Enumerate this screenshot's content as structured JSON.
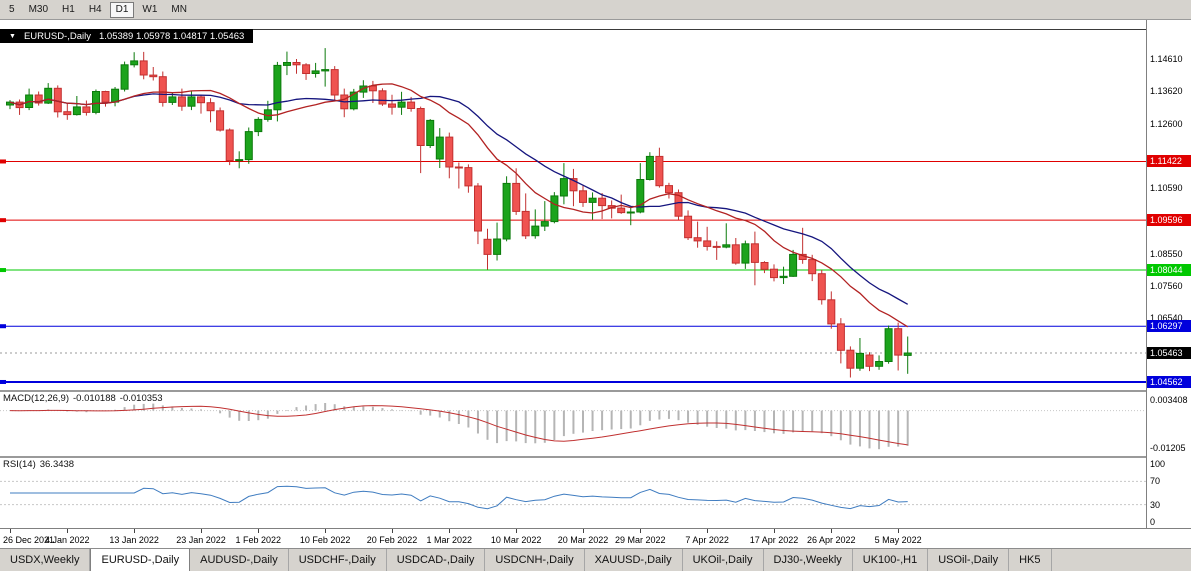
{
  "toolbar": {
    "buttons": [
      {
        "label": "5",
        "active": false
      },
      {
        "label": "M30",
        "active": false
      },
      {
        "label": "H1",
        "active": false
      },
      {
        "label": "H4",
        "active": false
      },
      {
        "label": "D1",
        "active": true
      },
      {
        "label": "W1",
        "active": false
      },
      {
        "label": "MN",
        "active": false
      }
    ]
  },
  "chart_data": {
    "type": "candlestick",
    "title": {
      "symbol": "EURUSD-,Daily",
      "ohlc_text": "1.05389 1.05978 1.04817 1.05463"
    },
    "ohlc_display": {
      "open": 1.05389,
      "high": 1.05978,
      "low": 1.04817,
      "close": 1.05463
    },
    "candles": [
      [
        1.1318,
        1.1333,
        1.1305,
        1.1327
      ],
      [
        1.1327,
        1.1335,
        1.1287,
        1.131
      ],
      [
        1.131,
        1.1369,
        1.1302,
        1.1349
      ],
      [
        1.1349,
        1.136,
        1.1316,
        1.1324
      ],
      [
        1.1324,
        1.1386,
        1.1321,
        1.137
      ],
      [
        1.137,
        1.1379,
        1.1279,
        1.1297
      ],
      [
        1.1297,
        1.1323,
        1.1272,
        1.1288
      ],
      [
        1.1288,
        1.1346,
        1.1285,
        1.1312
      ],
      [
        1.1312,
        1.1332,
        1.1285,
        1.1295
      ],
      [
        1.1295,
        1.1366,
        1.1289,
        1.136
      ],
      [
        1.136,
        1.1362,
        1.1313,
        1.1327
      ],
      [
        1.1327,
        1.1374,
        1.1314,
        1.1367
      ],
      [
        1.1367,
        1.1453,
        1.136,
        1.1443
      ],
      [
        1.1443,
        1.1482,
        1.1435,
        1.1455
      ],
      [
        1.1455,
        1.1483,
        1.1398,
        1.1411
      ],
      [
        1.1411,
        1.1436,
        1.1394,
        1.1406
      ],
      [
        1.1406,
        1.1422,
        1.1313,
        1.1326
      ],
      [
        1.1326,
        1.1358,
        1.1318,
        1.1343
      ],
      [
        1.1343,
        1.1369,
        1.13,
        1.1314
      ],
      [
        1.1314,
        1.136,
        1.1302,
        1.1343
      ],
      [
        1.1343,
        1.1349,
        1.1291,
        1.1325
      ],
      [
        1.1325,
        1.1339,
        1.1264,
        1.13
      ],
      [
        1.13,
        1.131,
        1.1235,
        1.124
      ],
      [
        1.124,
        1.1245,
        1.1131,
        1.1145
      ],
      [
        1.1145,
        1.1174,
        1.1121,
        1.1148
      ],
      [
        1.1148,
        1.1248,
        1.1135,
        1.1235
      ],
      [
        1.1235,
        1.128,
        1.1221,
        1.1273
      ],
      [
        1.1273,
        1.1331,
        1.1266,
        1.1303
      ],
      [
        1.1303,
        1.1452,
        1.1267,
        1.1441
      ],
      [
        1.1441,
        1.1484,
        1.1411,
        1.145
      ],
      [
        1.145,
        1.1461,
        1.1415,
        1.1443
      ],
      [
        1.1443,
        1.1448,
        1.1396,
        1.1416
      ],
      [
        1.1416,
        1.1449,
        1.1403,
        1.1424
      ],
      [
        1.1424,
        1.1495,
        1.1375,
        1.1428
      ],
      [
        1.1428,
        1.1439,
        1.133,
        1.1349
      ],
      [
        1.1349,
        1.1369,
        1.128,
        1.1306
      ],
      [
        1.1306,
        1.1368,
        1.1301,
        1.1358
      ],
      [
        1.1358,
        1.1395,
        1.134,
        1.1377
      ],
      [
        1.1377,
        1.1393,
        1.1324,
        1.1362
      ],
      [
        1.1362,
        1.137,
        1.1315,
        1.1321
      ],
      [
        1.1321,
        1.135,
        1.1288,
        1.1311
      ],
      [
        1.1311,
        1.1359,
        1.1287,
        1.1327
      ],
      [
        1.1327,
        1.1343,
        1.1297,
        1.1307
      ],
      [
        1.1307,
        1.1313,
        1.1106,
        1.1192
      ],
      [
        1.1192,
        1.1274,
        1.1184,
        1.127
      ],
      [
        1.115,
        1.1246,
        1.1122,
        1.1218
      ],
      [
        1.1218,
        1.1232,
        1.109,
        1.1125
      ],
      [
        1.1125,
        1.1139,
        1.1058,
        1.1123
      ],
      [
        1.1123,
        1.1133,
        1.1045,
        1.1066
      ],
      [
        1.1066,
        1.1075,
        1.0885,
        1.0926
      ],
      [
        1.09,
        1.0933,
        1.0806,
        1.0853
      ],
      [
        1.0853,
        1.0952,
        1.0834,
        1.0901
      ],
      [
        1.0901,
        1.1096,
        1.0894,
        1.1074
      ],
      [
        1.1074,
        1.1121,
        1.0976,
        1.0987
      ],
      [
        1.0987,
        1.1043,
        1.0901,
        1.0911
      ],
      [
        1.0911,
        1.0993,
        1.0902,
        1.0941
      ],
      [
        1.0941,
        1.1019,
        1.0926,
        1.0955
      ],
      [
        1.0955,
        1.1047,
        1.095,
        1.1035
      ],
      [
        1.1035,
        1.1137,
        1.1009,
        1.1089
      ],
      [
        1.1089,
        1.1119,
        1.1003,
        1.1051
      ],
      [
        1.1051,
        1.1069,
        1.1001,
        1.1015
      ],
      [
        1.1015,
        1.1046,
        1.0961,
        1.1028
      ],
      [
        1.1028,
        1.1044,
        1.0963,
        1.1005
      ],
      [
        1.1005,
        1.1021,
        1.0965,
        1.0997
      ],
      [
        1.0997,
        1.1039,
        1.0979,
        1.0983
      ],
      [
        1.0983,
        1.0999,
        1.0944,
        1.0985
      ],
      [
        1.0985,
        1.1137,
        1.0981,
        1.1086
      ],
      [
        1.1086,
        1.1171,
        1.1083,
        1.1158
      ],
      [
        1.1158,
        1.1185,
        1.1061,
        1.1067
      ],
      [
        1.1067,
        1.1076,
        1.1027,
        1.1045
      ],
      [
        1.1045,
        1.1055,
        1.096,
        1.0972
      ],
      [
        1.0972,
        1.099,
        1.0898,
        1.0905
      ],
      [
        1.0905,
        1.0955,
        1.0874,
        1.0895
      ],
      [
        1.0895,
        1.0939,
        1.0865,
        1.0878
      ],
      [
        1.0878,
        1.0894,
        1.0836,
        1.0876
      ],
      [
        1.0876,
        1.095,
        1.0872,
        1.0883
      ],
      [
        1.0883,
        1.0904,
        1.0821,
        1.0826
      ],
      [
        1.0826,
        1.0896,
        1.0808,
        1.0886
      ],
      [
        1.0886,
        1.0924,
        1.0757,
        1.0828
      ],
      [
        1.0828,
        1.0832,
        1.0795,
        1.0807
      ],
      [
        1.0807,
        1.0822,
        1.0769,
        1.0781
      ],
      [
        1.0781,
        1.0815,
        1.0761,
        1.0785
      ],
      [
        1.0785,
        1.0867,
        1.0783,
        1.0853
      ],
      [
        1.0853,
        1.0936,
        1.0824,
        1.0837
      ],
      [
        1.0837,
        1.0852,
        1.077,
        1.0793
      ],
      [
        1.0793,
        1.0805,
        1.0697,
        1.0712
      ],
      [
        1.0712,
        1.0738,
        1.0622,
        1.0637
      ],
      [
        1.0637,
        1.0655,
        1.0514,
        1.0555
      ],
      [
        1.0555,
        1.0567,
        1.047,
        1.0499
      ],
      [
        1.0499,
        1.0593,
        1.0491,
        1.0545
      ],
      [
        1.054,
        1.0549,
        1.049,
        1.0505
      ],
      [
        1.0505,
        1.0539,
        1.0494,
        1.052
      ],
      [
        1.052,
        1.0632,
        1.0513,
        1.0622
      ],
      [
        1.0622,
        1.0641,
        1.0492,
        1.054
      ],
      [
        1.05389,
        1.05978,
        1.04817,
        1.05463
      ]
    ],
    "x_ticks": [
      {
        "i": 0,
        "label": "26 Dec 2021"
      },
      {
        "i": 6,
        "label": "4 Jan 2022"
      },
      {
        "i": 13,
        "label": "13 Jan 2022"
      },
      {
        "i": 20,
        "label": "23 Jan 2022"
      },
      {
        "i": 26,
        "label": "1 Feb 2022"
      },
      {
        "i": 33,
        "label": "10 Feb 2022"
      },
      {
        "i": 40,
        "label": "20 Feb 2022"
      },
      {
        "i": 46,
        "label": "1 Mar 2022"
      },
      {
        "i": 53,
        "label": "10 Mar 2022"
      },
      {
        "i": 60,
        "label": "20 Mar 2022"
      },
      {
        "i": 66,
        "label": "29 Mar 2022"
      },
      {
        "i": 73,
        "label": "7 Apr 2022"
      },
      {
        "i": 80,
        "label": "17 Apr 2022"
      },
      {
        "i": 86,
        "label": "26 Apr 2022"
      },
      {
        "i": 93,
        "label": "5 May 2022"
      }
    ],
    "y_scale_labels": [
      {
        "value": 1.1461,
        "label": "1.14610"
      },
      {
        "value": 1.1362,
        "label": "1.13620"
      },
      {
        "value": 1.126,
        "label": "1.12600"
      },
      {
        "value": 1.1059,
        "label": "1.10590"
      },
      {
        "value": 1.0855,
        "label": "1.08550"
      },
      {
        "value": 1.0756,
        "label": "1.07560"
      },
      {
        "value": 1.0654,
        "label": "1.06540"
      }
    ],
    "hlines": [
      {
        "value": 1.11422,
        "label": "1.11422",
        "color": "#e00000",
        "width": 1
      },
      {
        "value": 1.09596,
        "label": "1.09596",
        "color": "#e00000",
        "width": 1
      },
      {
        "value": 1.08044,
        "label": "1.08044",
        "color": "#00c800",
        "width": 1
      },
      {
        "value": 1.06297,
        "label": "1.06297",
        "color": "#0000dc",
        "width": 1
      },
      {
        "value": 1.04562,
        "label": "1.04562",
        "color": "#0000dc",
        "width": 2
      }
    ],
    "current_price": {
      "value": 1.05463,
      "label": "1.05463",
      "badge_color": "#000000"
    },
    "moving_averages": [
      {
        "name": "ma-blue",
        "period": 20,
        "color": "#15157e"
      },
      {
        "name": "ma-red",
        "period": 13,
        "color": "#b22222"
      }
    ],
    "macd": {
      "name": "MACD(12,26,9)",
      "value_main": "-0.010188",
      "value_signal": "-0.010353",
      "fast": 12,
      "slow": 26,
      "signal": 9,
      "axis_max": {
        "value": 0.003408,
        "label": "0.003408"
      },
      "axis_min": {
        "value": -0.01205,
        "label": "-0.01205"
      },
      "histogram_color": "#b5b5b5",
      "signal_color": "#c03030"
    },
    "rsi": {
      "name": "RSI(14)",
      "value": "36.3438",
      "period": 14,
      "axis_labels": [
        {
          "value": 100,
          "label": "100"
        },
        {
          "value": 70,
          "label": "70"
        },
        {
          "value": 30,
          "label": "30"
        },
        {
          "value": 0,
          "label": "0"
        }
      ],
      "level_lines": [
        70,
        30
      ],
      "line_color": "#3f7cc0"
    },
    "colors": {
      "bull": "#1ca31c",
      "bull_border": "#0b7a0b",
      "bear": "#ef5350",
      "bear_border": "#c23030"
    }
  },
  "tabs": [
    {
      "label": "USDX,Weekly",
      "active": false
    },
    {
      "label": "EURUSD-,Daily",
      "active": true
    },
    {
      "label": "AUDUSD-,Daily",
      "active": false
    },
    {
      "label": "USDCHF-,Daily",
      "active": false
    },
    {
      "label": "USDCAD-,Daily",
      "active": false
    },
    {
      "label": "USDCNH-,Daily",
      "active": false
    },
    {
      "label": "XAUUSD-,Daily",
      "active": false
    },
    {
      "label": "UKOil-,Daily",
      "active": false
    },
    {
      "label": "DJ30-,Weekly",
      "active": false
    },
    {
      "label": "UK100-,H1",
      "active": false
    },
    {
      "label": "USOil-,Daily",
      "active": false
    },
    {
      "label": "HK5",
      "active": false
    }
  ]
}
